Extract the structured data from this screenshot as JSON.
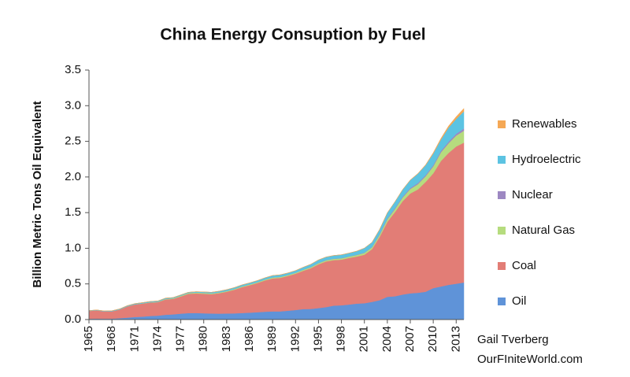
{
  "chart_data": {
    "type": "stacked_area",
    "title": "China Energy Consuption by Fuel",
    "y_label": "Billion Metric Tons Oil Equivalent",
    "credits": [
      "Gail Tverberg",
      "OurFIniteWorld.com"
    ],
    "x": [
      1965,
      1966,
      1967,
      1968,
      1969,
      1970,
      1971,
      1972,
      1973,
      1974,
      1975,
      1976,
      1977,
      1978,
      1979,
      1980,
      1981,
      1982,
      1983,
      1984,
      1985,
      1986,
      1987,
      1988,
      1989,
      1990,
      1991,
      1992,
      1993,
      1994,
      1995,
      1996,
      1997,
      1998,
      1999,
      2000,
      2001,
      2002,
      2003,
      2004,
      2005,
      2006,
      2007,
      2008,
      2009,
      2010,
      2011,
      2012,
      2013,
      2014
    ],
    "xlim": [
      1965,
      2014
    ],
    "xticks": [
      1965,
      1968,
      1971,
      1974,
      1977,
      1980,
      1983,
      1986,
      1989,
      1992,
      1995,
      1998,
      2001,
      2004,
      2007,
      2010,
      2013
    ],
    "ylim": [
      0,
      3.5
    ],
    "yticks": [
      {
        "value": 0,
        "label": "0.0"
      },
      {
        "value": 0.5,
        "label": "0.5"
      },
      {
        "value": 1,
        "label": "1.0"
      },
      {
        "value": 1.5,
        "label": "1.5"
      },
      {
        "value": 2,
        "label": "2.0"
      },
      {
        "value": 2.5,
        "label": "2.5"
      },
      {
        "value": 3,
        "label": "3.0"
      },
      {
        "value": 3.5,
        "label": "3.5"
      }
    ],
    "legend": "right",
    "series": [
      {
        "name": "Oil",
        "color": "#5f93d8",
        "values": [
          0.011,
          0.013,
          0.012,
          0.013,
          0.019,
          0.027,
          0.036,
          0.041,
          0.05,
          0.055,
          0.067,
          0.073,
          0.083,
          0.091,
          0.092,
          0.088,
          0.085,
          0.083,
          0.085,
          0.087,
          0.092,
          0.097,
          0.103,
          0.11,
          0.115,
          0.115,
          0.124,
          0.134,
          0.147,
          0.149,
          0.161,
          0.175,
          0.196,
          0.2,
          0.211,
          0.224,
          0.229,
          0.248,
          0.272,
          0.319,
          0.327,
          0.351,
          0.368,
          0.376,
          0.39,
          0.441,
          0.464,
          0.487,
          0.503,
          0.52
        ]
      },
      {
        "name": "Coal",
        "color": "#e27d76",
        "values": [
          0.109,
          0.116,
          0.102,
          0.103,
          0.12,
          0.156,
          0.175,
          0.183,
          0.188,
          0.189,
          0.215,
          0.217,
          0.241,
          0.27,
          0.275,
          0.274,
          0.271,
          0.287,
          0.305,
          0.331,
          0.362,
          0.385,
          0.409,
          0.439,
          0.462,
          0.47,
          0.488,
          0.509,
          0.537,
          0.571,
          0.614,
          0.641,
          0.638,
          0.641,
          0.654,
          0.66,
          0.681,
          0.74,
          0.89,
          1.052,
          1.182,
          1.31,
          1.401,
          1.45,
          1.54,
          1.61,
          1.76,
          1.85,
          1.925,
          1.962
        ]
      },
      {
        "name": "Natural Gas",
        "color": "#b6dc7e",
        "values": [
          0.001,
          0.001,
          0.001,
          0.001,
          0.002,
          0.003,
          0.003,
          0.004,
          0.005,
          0.006,
          0.008,
          0.009,
          0.011,
          0.012,
          0.013,
          0.013,
          0.012,
          0.011,
          0.011,
          0.011,
          0.012,
          0.012,
          0.012,
          0.013,
          0.014,
          0.014,
          0.014,
          0.014,
          0.015,
          0.015,
          0.016,
          0.016,
          0.018,
          0.018,
          0.019,
          0.022,
          0.025,
          0.026,
          0.03,
          0.035,
          0.042,
          0.051,
          0.063,
          0.073,
          0.08,
          0.098,
          0.121,
          0.135,
          0.153,
          0.167
        ]
      },
      {
        "name": "Nuclear",
        "color": "#9d88c2",
        "values": [
          0,
          0,
          0,
          0,
          0,
          0,
          0,
          0,
          0,
          0,
          0,
          0,
          0,
          0,
          0,
          0,
          0,
          0,
          0,
          0,
          0,
          0,
          0,
          0,
          0,
          0,
          0,
          0,
          0.001,
          0.003,
          0.003,
          0.003,
          0.003,
          0.003,
          0.003,
          0.004,
          0.004,
          0.006,
          0.01,
          0.011,
          0.012,
          0.012,
          0.014,
          0.016,
          0.016,
          0.017,
          0.02,
          0.022,
          0.025,
          0.03
        ]
      },
      {
        "name": "Hydroelectric",
        "color": "#5cc3e2",
        "values": [
          0.005,
          0.005,
          0.006,
          0.007,
          0.008,
          0.009,
          0.01,
          0.01,
          0.011,
          0.011,
          0.011,
          0.01,
          0.011,
          0.01,
          0.011,
          0.013,
          0.015,
          0.017,
          0.019,
          0.02,
          0.021,
          0.021,
          0.023,
          0.024,
          0.027,
          0.029,
          0.028,
          0.03,
          0.034,
          0.038,
          0.043,
          0.043,
          0.044,
          0.047,
          0.046,
          0.05,
          0.063,
          0.064,
          0.064,
          0.08,
          0.09,
          0.098,
          0.11,
          0.131,
          0.139,
          0.163,
          0.158,
          0.198,
          0.208,
          0.24
        ]
      },
      {
        "name": "Renewables",
        "color": "#f5a855",
        "values": [
          0,
          0,
          0,
          0,
          0,
          0,
          0,
          0,
          0,
          0,
          0,
          0,
          0,
          0,
          0,
          0,
          0,
          0,
          0,
          0,
          0,
          0,
          0,
          0,
          0,
          0,
          0,
          0,
          0,
          0,
          0,
          0,
          0,
          0,
          0,
          0,
          0,
          0,
          0.001,
          0.001,
          0.001,
          0.002,
          0.003,
          0.004,
          0.006,
          0.011,
          0.017,
          0.023,
          0.032,
          0.042
        ]
      }
    ]
  }
}
